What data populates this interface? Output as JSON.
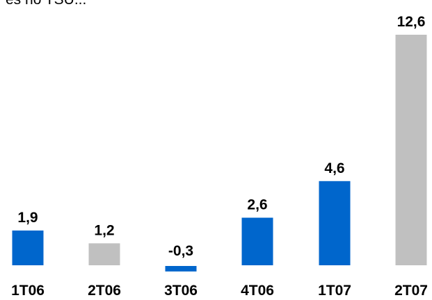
{
  "header": {
    "cut_text": "es no TSU..."
  },
  "colors": {
    "blue": "#0066cc",
    "gray": "#c0c0c0"
  },
  "chart_data": {
    "type": "bar",
    "categories": [
      "1T06",
      "2T06",
      "3T06",
      "4T06",
      "1T07",
      "2T07"
    ],
    "values": [
      1.9,
      1.2,
      -0.3,
      2.6,
      4.6,
      12.6
    ],
    "data_labels": [
      "1,9",
      "1,2",
      "-0,3",
      "2,6",
      "4,6",
      "12,6"
    ],
    "bar_colors": [
      "blue",
      "gray",
      "blue",
      "blue",
      "blue",
      "gray"
    ],
    "title": "",
    "xlabel": "",
    "ylabel": "",
    "grid": false,
    "axes_visible": false
  }
}
